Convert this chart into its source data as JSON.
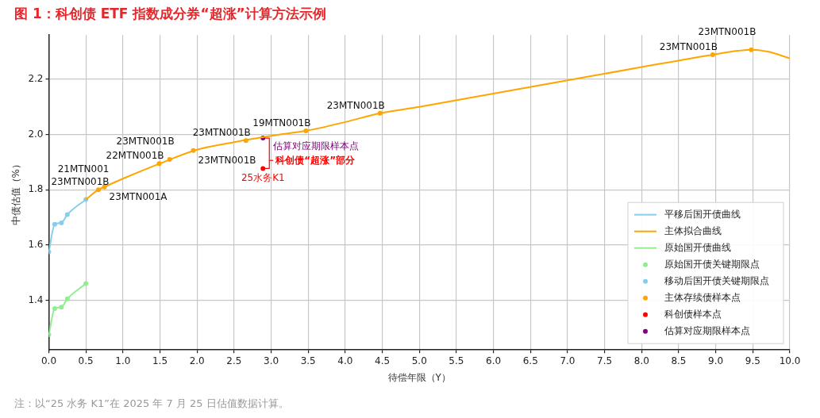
{
  "chart_data": {
    "type": "line",
    "title": "图 1：科创债 ETF 指数成分券“超涨”计算方法示例",
    "xlabel": "待偿年限（Y）",
    "ylabel": "中债估值（%）",
    "xlim": [
      0,
      10
    ],
    "ylim": [
      1.22,
      2.36
    ],
    "xticks": [
      {
        "value": 0,
        "label": "0.0"
      },
      0.5,
      {
        "value": 1,
        "label": "1.0"
      },
      1.5,
      {
        "value": 2,
        "label": "2.0"
      },
      2.5,
      {
        "value": 3,
        "label": "3.0"
      },
      3.5,
      {
        "value": 4,
        "label": "4.0"
      },
      4.5,
      {
        "value": 5,
        "label": "5.0"
      },
      5.5,
      {
        "value": 6,
        "label": "6.0"
      },
      6.5,
      {
        "value": 7,
        "label": "7.0"
      },
      7.5,
      {
        "value": 8,
        "label": "8.0"
      },
      8.5,
      {
        "value": 9,
        "label": "9.0"
      },
      9.5,
      {
        "value": 10,
        "label": "10.0"
      }
    ],
    "yticks": [
      1.4,
      1.6,
      1.8,
      {
        "value": 2,
        "label": "2.0"
      },
      2.2
    ],
    "grid": true,
    "legend": "bottom right",
    "series": [
      {
        "name": "平移后国开债曲线",
        "marker": "none",
        "color": "#87ceeb",
        "x": [
          0,
          0.08,
          0.17,
          0.25,
          0.5
        ],
        "values": [
          1.575,
          1.675,
          1.68,
          1.71,
          1.765
        ]
      },
      {
        "name": "主体拟合曲线",
        "marker": "none",
        "color": "#ffa500",
        "x": [
          0.5,
          0.67,
          0.75,
          1.0,
          1.5,
          2.0,
          2.5,
          3.0,
          3.5,
          4.0,
          4.47,
          5,
          6,
          7,
          8,
          8.96,
          9.3,
          9.48,
          9.7,
          10
        ],
        "values": [
          1.765,
          1.8,
          1.81,
          1.84,
          1.895,
          1.945,
          1.972,
          1.995,
          2.015,
          2.045,
          2.077,
          2.1,
          2.148,
          2.196,
          2.244,
          2.289,
          2.303,
          2.307,
          2.3,
          2.276
        ]
      },
      {
        "name": "原始国开债曲线",
        "marker": "none",
        "color": "#90ee90",
        "x": [
          0,
          0.08,
          0.17,
          0.25,
          0.5
        ],
        "values": [
          1.275,
          1.37,
          1.375,
          1.405,
          1.46
        ]
      },
      {
        "name": "原始国开债关键期限点",
        "type": "scatter",
        "marker": "circle",
        "color": "#90ee90",
        "x": [
          0,
          0.08,
          0.17,
          0.25,
          0.5
        ],
        "values": [
          1.275,
          1.37,
          1.375,
          1.405,
          1.46
        ]
      },
      {
        "name": "移动后国开债关键期限点",
        "type": "scatter",
        "marker": "circle",
        "color": "#87ceeb",
        "x": [
          0,
          0.08,
          0.17,
          0.25,
          0.5
        ],
        "values": [
          1.575,
          1.675,
          1.68,
          1.71,
          1.765
        ]
      },
      {
        "name": "主体存续债样本点",
        "type": "scatter",
        "marker": "circle",
        "color": "#ffa500",
        "x": [
          0.67,
          0.75,
          1.49,
          1.63,
          1.95,
          2.66,
          3.47,
          4.47,
          8.96,
          9.48
        ],
        "values": [
          1.8,
          1.81,
          1.895,
          1.91,
          1.942,
          1.978,
          2.013,
          2.077,
          2.289,
          2.307
        ]
      },
      {
        "name": "科创债样本点",
        "type": "scatter",
        "marker": "circle",
        "color": "#ff0000",
        "x": [
          2.89
        ],
        "values": [
          1.877
        ]
      },
      {
        "name": "估算对应期限样本点",
        "type": "scatter",
        "marker": "circle",
        "color": "#800080",
        "x": [
          2.89
        ],
        "values": [
          1.987
        ]
      }
    ],
    "annotations": [
      {
        "text": "23MTN001B",
        "x": 0.67,
        "y": 1.8
      },
      {
        "text": "21MTN001",
        "x": 0.75,
        "y": 1.81
      },
      {
        "text": "23MTN001A",
        "x": 0.75,
        "y": 1.81
      },
      {
        "text": "22MTN001B",
        "x": 1.49,
        "y": 1.895
      },
      {
        "text": "23MTN001B",
        "x": 1.63,
        "y": 1.91
      },
      {
        "text": "23MTN001B",
        "x": 1.95,
        "y": 1.942
      },
      {
        "text": "23MTN001B",
        "x": 2.66,
        "y": 1.978
      },
      {
        "text": "19MTN001B",
        "x": 3.47,
        "y": 2.013
      },
      {
        "text": "23MTN001B",
        "x": 4.47,
        "y": 2.077
      },
      {
        "text": "23MTN001B",
        "x": 8.96,
        "y": 2.289
      },
      {
        "text": "23MTN001B",
        "x": 9.48,
        "y": 2.307
      },
      {
        "text": "25水务K1",
        "x": 2.89,
        "y": 1.877
      },
      {
        "text": "估算对应期限样本点",
        "x": 2.89,
        "y": 1.987
      },
      {
        "text": "科创债“超涨”部分",
        "x": 2.89,
        "y": 1.877
      },
      "注：以“25 水务 K1”在 2025 年 7 月 25 日估值数据计算。"
    ]
  }
}
